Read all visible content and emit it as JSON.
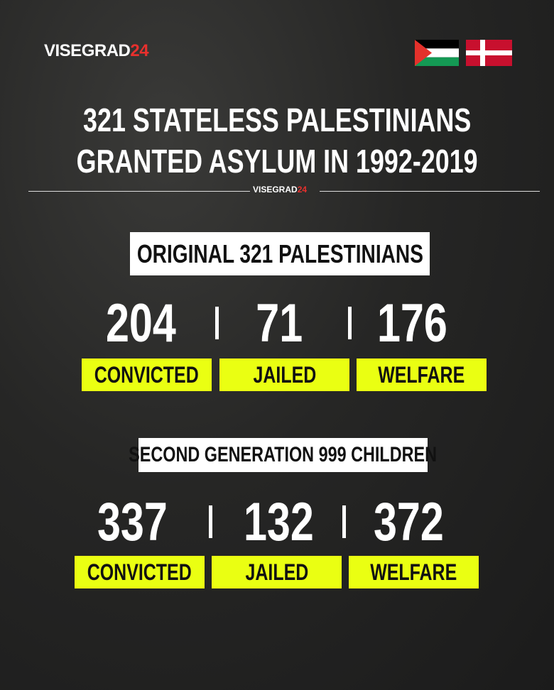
{
  "brand": {
    "name": "VISEGRAD",
    "number": "24"
  },
  "title": {
    "line1": "321 STATELESS PALESTINIANS",
    "line2": "GRANTED ASYLUM IN 1992-2019"
  },
  "sections": [
    {
      "heading": "ORIGINAL 321 PALESTINIANS",
      "stats": [
        {
          "value": 204,
          "label": "CONVICTED"
        },
        {
          "value": 71,
          "label": "JAILED"
        },
        {
          "value": 176,
          "label": "WELFARE"
        }
      ]
    },
    {
      "heading": "SECOND GENERATION 999 CHILDREN",
      "stats": [
        {
          "value": 337,
          "label": "CONVICTED"
        },
        {
          "value": 132,
          "label": "JAILED"
        },
        {
          "value": 372,
          "label": "WELFARE"
        }
      ]
    }
  ]
}
